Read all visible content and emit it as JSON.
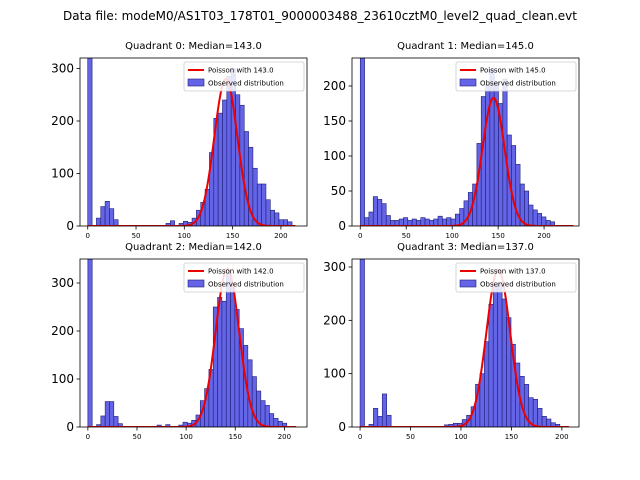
{
  "figure": {
    "suptitle": "Data file: modeM0/AS1T03_178T01_9000003488_23610cztM0_level2_quad_clean.evt",
    "hist_color": "#6464e6",
    "hist_edge": "#1e1e78",
    "fit_color": "#ee0000"
  },
  "chart_data": [
    {
      "type": "bar",
      "title": "Quadrant 0: Median=143.0",
      "legend": [
        "Poisson with 143.0",
        "Observed distribution"
      ],
      "legend_position": "top-right",
      "xlim": [
        -8,
        227
      ],
      "ylim": [
        0,
        320
      ],
      "xticks": [
        0,
        50,
        100,
        150,
        200
      ],
      "yticks": [
        0,
        100,
        200,
        300
      ],
      "bin_width": 4.5,
      "bins": [
        {
          "x": 0,
          "y": 320
        },
        {
          "x": 9,
          "y": 15
        },
        {
          "x": 13.5,
          "y": 37
        },
        {
          "x": 18,
          "y": 47
        },
        {
          "x": 22.5,
          "y": 33
        },
        {
          "x": 27,
          "y": 12
        },
        {
          "x": 81,
          "y": 5
        },
        {
          "x": 85.5,
          "y": 10
        },
        {
          "x": 94.5,
          "y": 5
        },
        {
          "x": 99,
          "y": 9
        },
        {
          "x": 103.5,
          "y": 7
        },
        {
          "x": 108,
          "y": 15
        },
        {
          "x": 112.5,
          "y": 30
        },
        {
          "x": 117,
          "y": 45
        },
        {
          "x": 121.5,
          "y": 70
        },
        {
          "x": 126,
          "y": 140
        },
        {
          "x": 130.5,
          "y": 205
        },
        {
          "x": 135,
          "y": 215
        },
        {
          "x": 139.5,
          "y": 240
        },
        {
          "x": 144,
          "y": 285
        },
        {
          "x": 148.5,
          "y": 300
        },
        {
          "x": 153,
          "y": 250
        },
        {
          "x": 157.5,
          "y": 230
        },
        {
          "x": 162,
          "y": 180
        },
        {
          "x": 166.5,
          "y": 150
        },
        {
          "x": 171,
          "y": 110
        },
        {
          "x": 175.5,
          "y": 80
        },
        {
          "x": 180,
          "y": 80
        },
        {
          "x": 184.5,
          "y": 50
        },
        {
          "x": 189,
          "y": 30
        },
        {
          "x": 193.5,
          "y": 25
        },
        {
          "x": 198,
          "y": 12
        },
        {
          "x": 202.5,
          "y": 12
        },
        {
          "x": 207,
          "y": 8
        }
      ],
      "poisson_mean": 143.0,
      "poisson_peak": 280,
      "poisson_x_range": [
        0,
        215
      ]
    },
    {
      "type": "bar",
      "title": "Quadrant 1: Median=145.0",
      "legend": [
        "Poisson with 145.0",
        "Observed distribution"
      ],
      "legend_position": "top-right",
      "xlim": [
        -9,
        238
      ],
      "ylim": [
        0,
        240
      ],
      "xticks": [
        0,
        50,
        100,
        150,
        200
      ],
      "yticks": [
        0,
        50,
        100,
        150,
        200
      ],
      "bin_width": 4.7,
      "bins": [
        {
          "x": 0,
          "y": 240
        },
        {
          "x": 4.7,
          "y": 12
        },
        {
          "x": 9.4,
          "y": 20
        },
        {
          "x": 14.1,
          "y": 42
        },
        {
          "x": 18.8,
          "y": 38
        },
        {
          "x": 23.5,
          "y": 32
        },
        {
          "x": 28.2,
          "y": 15
        },
        {
          "x": 32.9,
          "y": 8
        },
        {
          "x": 37.6,
          "y": 8
        },
        {
          "x": 42.3,
          "y": 10
        },
        {
          "x": 47,
          "y": 12
        },
        {
          "x": 51.7,
          "y": 8
        },
        {
          "x": 56.4,
          "y": 10
        },
        {
          "x": 61.1,
          "y": 8
        },
        {
          "x": 65.8,
          "y": 12
        },
        {
          "x": 70.5,
          "y": 10
        },
        {
          "x": 75.2,
          "y": 8
        },
        {
          "x": 79.9,
          "y": 10
        },
        {
          "x": 84.6,
          "y": 14
        },
        {
          "x": 89.3,
          "y": 10
        },
        {
          "x": 94,
          "y": 12
        },
        {
          "x": 98.7,
          "y": 10
        },
        {
          "x": 103.4,
          "y": 17
        },
        {
          "x": 108.1,
          "y": 25
        },
        {
          "x": 112.8,
          "y": 36
        },
        {
          "x": 117.5,
          "y": 48
        },
        {
          "x": 122.2,
          "y": 60
        },
        {
          "x": 126.9,
          "y": 118
        },
        {
          "x": 131.6,
          "y": 185
        },
        {
          "x": 136.3,
          "y": 202
        },
        {
          "x": 141,
          "y": 224
        },
        {
          "x": 145.7,
          "y": 205
        },
        {
          "x": 150.4,
          "y": 175
        },
        {
          "x": 155.1,
          "y": 210
        },
        {
          "x": 159.8,
          "y": 130
        },
        {
          "x": 164.5,
          "y": 115
        },
        {
          "x": 169.2,
          "y": 88
        },
        {
          "x": 173.9,
          "y": 60
        },
        {
          "x": 178.6,
          "y": 50
        },
        {
          "x": 183.3,
          "y": 30
        },
        {
          "x": 188,
          "y": 23
        },
        {
          "x": 192.7,
          "y": 18
        },
        {
          "x": 197.4,
          "y": 13
        },
        {
          "x": 202.1,
          "y": 8
        },
        {
          "x": 206.8,
          "y": 6
        }
      ],
      "poisson_mean": 145.0,
      "poisson_peak": 183,
      "poisson_x_range": [
        0,
        232
      ]
    },
    {
      "type": "bar",
      "title": "Quadrant 2: Median=142.0",
      "legend": [
        "Poisson with 142.0",
        "Observed distribution"
      ],
      "legend_position": "top-right",
      "xlim": [
        -8,
        223
      ],
      "ylim": [
        0,
        350
      ],
      "xticks": [
        0,
        50,
        100,
        150,
        200
      ],
      "yticks": [
        0,
        100,
        200,
        300
      ],
      "bin_width": 4.4,
      "bins": [
        {
          "x": 0,
          "y": 350
        },
        {
          "x": 8.8,
          "y": 5
        },
        {
          "x": 13.2,
          "y": 23
        },
        {
          "x": 17.6,
          "y": 53
        },
        {
          "x": 22,
          "y": 53
        },
        {
          "x": 26.4,
          "y": 22
        },
        {
          "x": 30.8,
          "y": 7
        },
        {
          "x": 70.4,
          "y": 4
        },
        {
          "x": 79.2,
          "y": 5
        },
        {
          "x": 92.4,
          "y": 4
        },
        {
          "x": 96.8,
          "y": 10
        },
        {
          "x": 101.2,
          "y": 8
        },
        {
          "x": 105.6,
          "y": 14
        },
        {
          "x": 110,
          "y": 25
        },
        {
          "x": 114.4,
          "y": 55
        },
        {
          "x": 118.8,
          "y": 80
        },
        {
          "x": 123.2,
          "y": 120
        },
        {
          "x": 127.6,
          "y": 250
        },
        {
          "x": 132,
          "y": 270
        },
        {
          "x": 136.4,
          "y": 262
        },
        {
          "x": 140.8,
          "y": 320
        },
        {
          "x": 145.2,
          "y": 300
        },
        {
          "x": 149.6,
          "y": 245
        },
        {
          "x": 154,
          "y": 205
        },
        {
          "x": 158.4,
          "y": 170
        },
        {
          "x": 162.8,
          "y": 140
        },
        {
          "x": 167.2,
          "y": 105
        },
        {
          "x": 171.6,
          "y": 75
        },
        {
          "x": 176,
          "y": 55
        },
        {
          "x": 180.4,
          "y": 45
        },
        {
          "x": 184.8,
          "y": 28
        },
        {
          "x": 189.2,
          "y": 18
        },
        {
          "x": 193.6,
          "y": 12
        },
        {
          "x": 198,
          "y": 8
        }
      ],
      "poisson_mean": 142.0,
      "poisson_peak": 330,
      "poisson_x_range": [
        0,
        212
      ]
    },
    {
      "type": "bar",
      "title": "Quadrant 3: Median=137.0",
      "legend": [
        "Poisson with 137.0",
        "Observed distribution"
      ],
      "legend_position": "top-right",
      "xlim": [
        -8,
        217
      ],
      "ylim": [
        0,
        315
      ],
      "xticks": [
        0,
        50,
        100,
        150,
        200
      ],
      "yticks": [
        0,
        100,
        200,
        300
      ],
      "bin_width": 4.4,
      "bins": [
        {
          "x": 0,
          "y": 315
        },
        {
          "x": 8.8,
          "y": 5
        },
        {
          "x": 13.2,
          "y": 35
        },
        {
          "x": 17.6,
          "y": 20
        },
        {
          "x": 22,
          "y": 62
        },
        {
          "x": 26.4,
          "y": 22
        },
        {
          "x": 83.6,
          "y": 4
        },
        {
          "x": 88,
          "y": 5
        },
        {
          "x": 92.4,
          "y": 7
        },
        {
          "x": 96.8,
          "y": 7
        },
        {
          "x": 101.2,
          "y": 14
        },
        {
          "x": 105.6,
          "y": 22
        },
        {
          "x": 110,
          "y": 38
        },
        {
          "x": 114.4,
          "y": 80
        },
        {
          "x": 118.8,
          "y": 100
        },
        {
          "x": 123.2,
          "y": 160
        },
        {
          "x": 127.6,
          "y": 230
        },
        {
          "x": 132,
          "y": 265
        },
        {
          "x": 136.4,
          "y": 270
        },
        {
          "x": 140.8,
          "y": 240
        },
        {
          "x": 145.2,
          "y": 205
        },
        {
          "x": 149.6,
          "y": 155
        },
        {
          "x": 154,
          "y": 120
        },
        {
          "x": 158.4,
          "y": 95
        },
        {
          "x": 162.8,
          "y": 80
        },
        {
          "x": 167.2,
          "y": 55
        },
        {
          "x": 171.6,
          "y": 52
        },
        {
          "x": 176,
          "y": 35
        },
        {
          "x": 180.4,
          "y": 20
        },
        {
          "x": 184.8,
          "y": 15
        },
        {
          "x": 189.2,
          "y": 8
        },
        {
          "x": 193.6,
          "y": 5
        }
      ],
      "poisson_mean": 137.0,
      "poisson_peak": 295,
      "poisson_x_range": [
        0,
        207
      ]
    }
  ]
}
